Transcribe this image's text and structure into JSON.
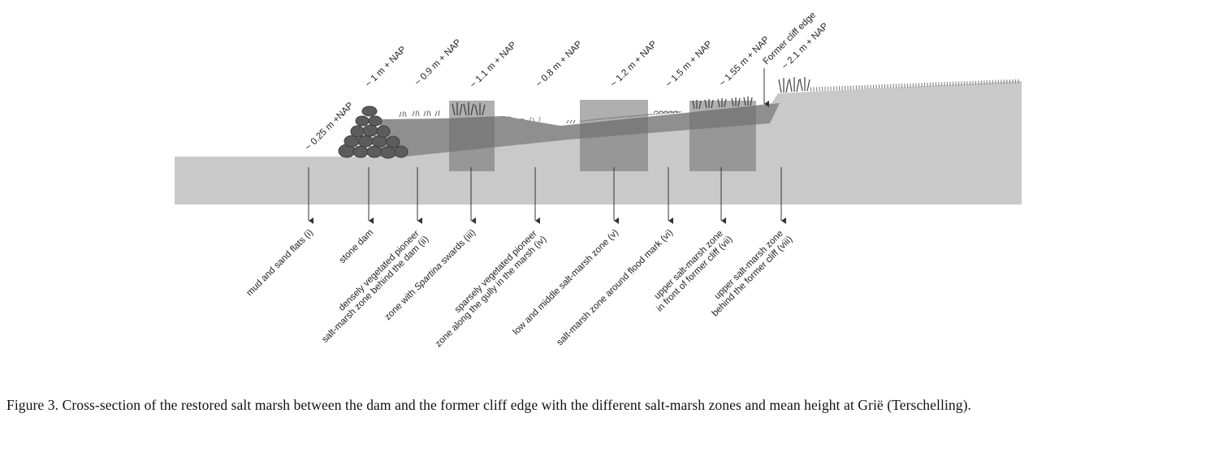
{
  "diagram": {
    "height_labels": [
      "~ 0.25 m +NAP",
      "~ 1 m + NAP",
      "~ 0.9 m + NAP",
      "~ 1.1 m + NAP",
      "~ 0.8 m + NAP",
      "~ 1.2 m + NAP",
      "~ 1.5 m + NAP",
      "~ 1.55 m + NAP",
      "Former cliff edge",
      "~ 2.1 m + NAP"
    ],
    "zone_labels": [
      [
        "mud and sand flats (i)"
      ],
      [
        "stone dam"
      ],
      [
        "densely vegetated pioneer",
        "salt-marsh zone behind the dam  (ii)"
      ],
      [
        "zone with ",
        "Spartina",
        " swards (iii)"
      ],
      [
        "sparsely vegetated pioneer",
        "zone along the gully in the marsh (iv)"
      ],
      [
        "low and middle salt-marsh zone  (v)"
      ],
      [
        "salt-marsh zone around flood mark (vi)"
      ],
      [
        "upper salt-marsh zone",
        "in front of former cliff (vii)"
      ],
      [
        "upper salt-marsh zone",
        "behind the former cliff (viii)"
      ]
    ],
    "colors": {
      "ground": "#c9c9c9",
      "marsh": "#8f8f8f",
      "zone_box": "#707070",
      "stones": "#5a5a5a",
      "arrows": "#333333"
    }
  },
  "caption": {
    "text": "Figure 3. Cross-section of the restored salt marsh between the dam and the former cliff edge with the different salt-marsh zones and mean height at Grië (Terschelling)."
  }
}
